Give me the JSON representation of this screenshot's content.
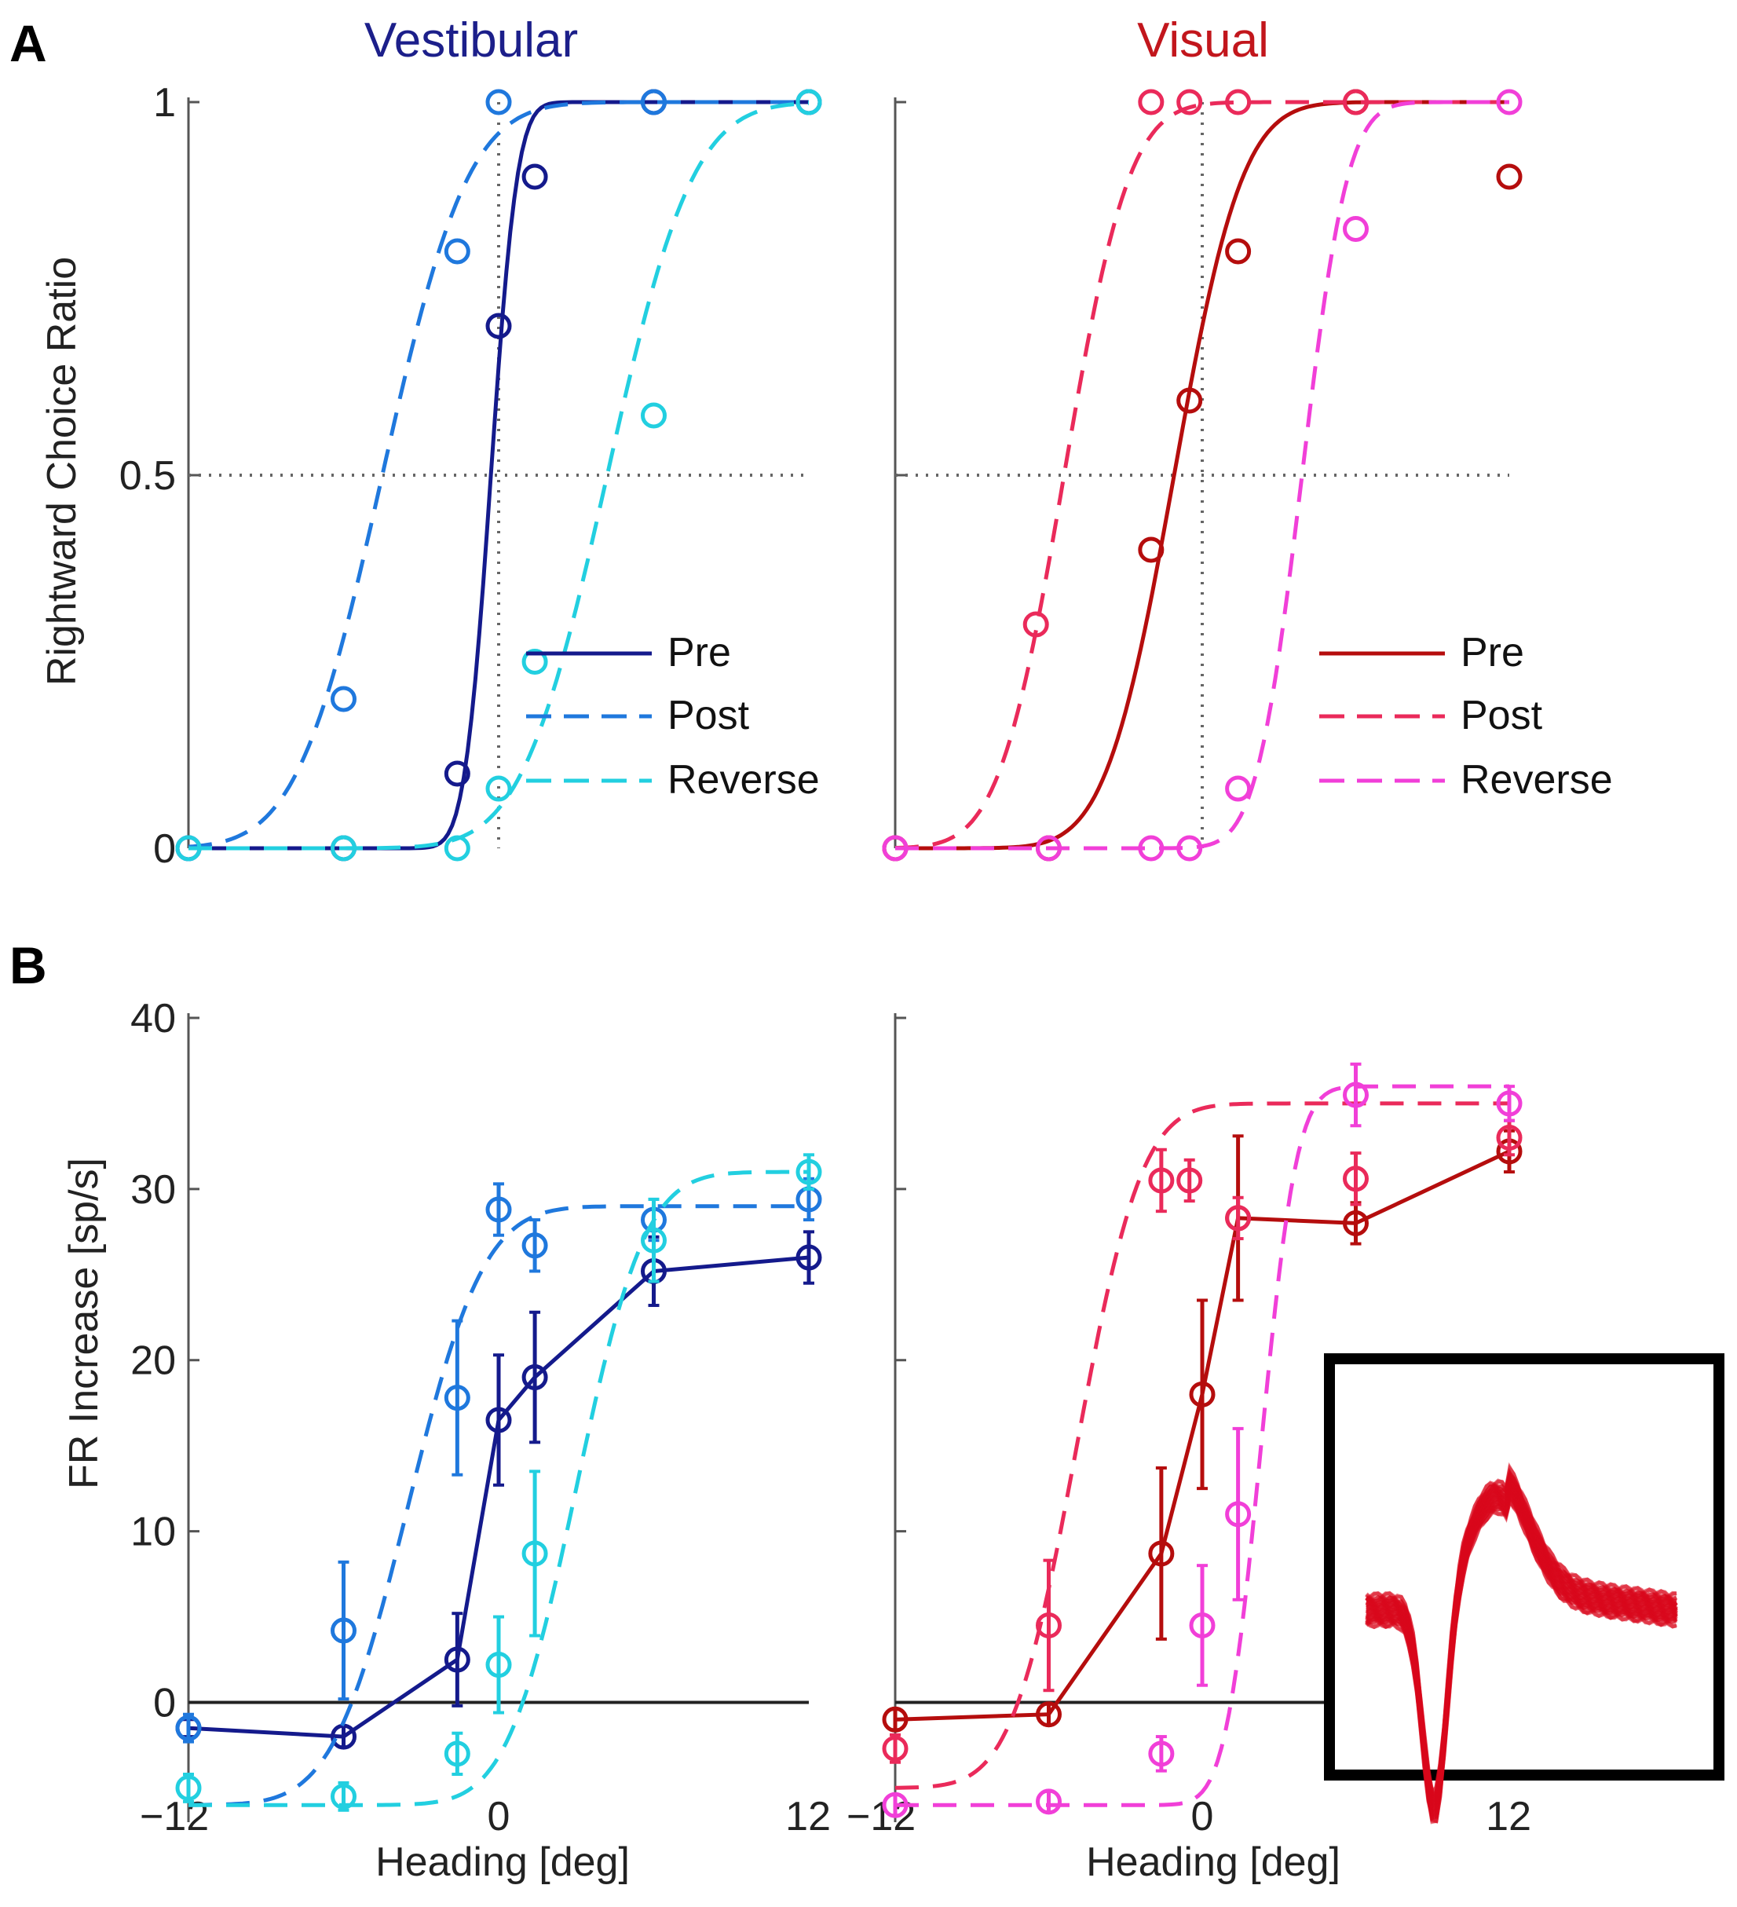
{
  "figure": {
    "panel_a": "A",
    "panel_b": "B"
  },
  "colors": {
    "vestibular_title": "#1c1f8a",
    "visual_title": "#c2161c",
    "vest_pre": "#141a8c",
    "vest_post": "#1f78dd",
    "vest_reverse": "#22cfe0",
    "vis_pre": "#b50d0d",
    "vis_post": "#ea2a5a",
    "vis_reverse": "#f13fd8",
    "inset_trace": "#d9081b",
    "axis": "#555555"
  },
  "chart_data": [
    {
      "id": "A-vestibular",
      "type": "line",
      "title": "Vestibular",
      "xlabel": "",
      "ylabel": "Rightward Choice Ratio",
      "xlim": [
        -12,
        12
      ],
      "ylim": [
        0,
        1
      ],
      "yticks": [
        "0",
        "0.5",
        "1"
      ],
      "xticks": [],
      "reference_lines": [
        "x = 0 (dotted)",
        "y = 0.5 (dotted)"
      ],
      "legend": {
        "placement": "bottom-right",
        "entries": [
          "Pre",
          "Post",
          "Reverse"
        ]
      },
      "series": [
        {
          "name": "Pre",
          "style": "solid",
          "fit": {
            "mu": -0.3,
            "sigma": 0.8
          },
          "points": [
            [
              -12,
              0
            ],
            [
              -6,
              0
            ],
            [
              -1.6,
              0.1
            ],
            [
              0,
              0.7
            ],
            [
              1.4,
              0.9
            ],
            [
              6,
              1
            ],
            [
              12,
              1
            ]
          ]
        },
        {
          "name": "Post",
          "style": "dashed",
          "fit": {
            "mu": -4.5,
            "sigma": 2.6
          },
          "points": [
            [
              -12,
              0
            ],
            [
              -6,
              0.2
            ],
            [
              -1.6,
              0.8
            ],
            [
              0,
              1
            ],
            [
              6,
              1
            ],
            [
              12,
              1
            ]
          ]
        },
        {
          "name": "Reverse",
          "style": "dashed",
          "fit": {
            "mu": 4.2,
            "sigma": 2.6
          },
          "points": [
            [
              -12,
              0
            ],
            [
              -6,
              0
            ],
            [
              -1.6,
              0
            ],
            [
              0,
              0.08
            ],
            [
              1.4,
              0.25
            ],
            [
              6,
              0.58
            ],
            [
              12,
              1
            ]
          ]
        }
      ]
    },
    {
      "id": "A-visual",
      "type": "line",
      "title": "Visual",
      "xlabel": "",
      "ylabel": "",
      "xlim": [
        -12,
        12
      ],
      "ylim": [
        0,
        1
      ],
      "yticks": [],
      "xticks": [],
      "reference_lines": [
        "x = 0 (dotted)",
        "y = 0.5 (dotted)"
      ],
      "legend": {
        "placement": "bottom-right",
        "entries": [
          "Pre",
          "Post",
          "Reverse"
        ]
      },
      "series": [
        {
          "name": "Pre",
          "style": "solid",
          "fit": {
            "mu": -1.1,
            "sigma": 2.1
          },
          "points": [
            [
              -12,
              0
            ],
            [
              -6,
              0
            ],
            [
              -2,
              0.4
            ],
            [
              -0.5,
              0.6
            ],
            [
              1.4,
              0.8
            ],
            [
              6,
              1
            ],
            [
              12,
              0.9
            ]
          ]
        },
        {
          "name": "Post",
          "style": "dashed",
          "fit": {
            "mu": -5.4,
            "sigma": 2.0
          },
          "points": [
            [
              -12,
              0
            ],
            [
              -6.5,
              0.3
            ],
            [
              -2,
              1
            ],
            [
              -0.5,
              1
            ],
            [
              1.4,
              1
            ],
            [
              6,
              1
            ]
          ]
        },
        {
          "name": "Reverse",
          "style": "dashed",
          "fit": {
            "mu": 3.9,
            "sigma": 1.4
          },
          "points": [
            [
              -12,
              0
            ],
            [
              -6,
              0
            ],
            [
              -2,
              0
            ],
            [
              -0.5,
              0
            ],
            [
              1.4,
              0.08
            ],
            [
              6,
              0.83
            ],
            [
              12,
              1
            ]
          ]
        }
      ]
    },
    {
      "id": "B-vestibular",
      "type": "line",
      "title": "",
      "xlabel": "Heading [deg]",
      "ylabel": "FR Increase [sp/s]",
      "xlim": [
        -12,
        12
      ],
      "ylim": [
        -7,
        40
      ],
      "yticks": [
        "0",
        "10",
        "20",
        "30",
        "40"
      ],
      "xticks": [
        "−12",
        "0",
        "12"
      ],
      "reference_lines": [
        "y = 0 (solid)"
      ],
      "series": [
        {
          "name": "Pre",
          "style": "solid",
          "points": [
            [
              -12,
              -1.5,
              0.5
            ],
            [
              -6,
              -2,
              0.6
            ],
            [
              -1.6,
              2.5,
              2.7
            ],
            [
              0,
              16.5,
              3.8
            ],
            [
              1.4,
              19,
              3.8
            ],
            [
              6,
              25.2,
              2
            ],
            [
              12,
              26,
              1.5
            ]
          ]
        },
        {
          "name": "Post",
          "style": "dashed",
          "fit": {
            "mu": -3.5,
            "sigma": 2.3,
            "amp": 35,
            "base": -6
          },
          "points": [
            [
              -12,
              -1.5,
              0.8
            ],
            [
              -6,
              4.2,
              4
            ],
            [
              -1.6,
              17.8,
              4.5
            ],
            [
              0,
              28.8,
              1.5
            ],
            [
              1.4,
              26.7,
              1.5
            ],
            [
              6,
              28.2,
              1.2
            ],
            [
              12,
              29.4,
              1.2
            ]
          ]
        },
        {
          "name": "Reverse",
          "style": "dashed",
          "fit": {
            "mu": 3.0,
            "sigma": 2.1,
            "amp": 37,
            "base": -6
          },
          "points": [
            [
              -12,
              -5,
              0.8
            ],
            [
              -6,
              -5.5,
              0.8
            ],
            [
              -1.6,
              -3,
              1.2
            ],
            [
              0,
              2.2,
              2.8
            ],
            [
              1.4,
              8.7,
              4.8
            ],
            [
              6,
              27,
              2.4
            ],
            [
              12,
              31,
              1
            ]
          ]
        }
      ]
    },
    {
      "id": "B-visual",
      "type": "line",
      "title": "",
      "xlabel": "Heading [deg]",
      "ylabel": "",
      "xlim": [
        -12,
        12
      ],
      "ylim": [
        -7,
        40
      ],
      "yticks": [],
      "xticks": [
        "−12",
        "0",
        "12"
      ],
      "reference_lines": [
        "y = 0 (solid)"
      ],
      "inset": "spike waveform overlay",
      "series": [
        {
          "name": "Pre",
          "style": "solid",
          "points": [
            [
              -12,
              -1,
              0.6
            ],
            [
              -6,
              -0.7,
              0.6
            ],
            [
              -1.6,
              8.7,
              5
            ],
            [
              0,
              18,
              5.5
            ],
            [
              1.4,
              28.3,
              4.8
            ],
            [
              6,
              28,
              1.2
            ],
            [
              12,
              32.2,
              1.2
            ]
          ]
        },
        {
          "name": "Post",
          "style": "dashed",
          "fit": {
            "mu": -4.9,
            "sigma": 2.0,
            "amp": 40,
            "base": -5
          },
          "points": [
            [
              -12,
              -2.7,
              0.8
            ],
            [
              -6,
              4.5,
              3.8
            ],
            [
              -1.6,
              30.5,
              1.8
            ],
            [
              -0.5,
              30.5,
              1.2
            ],
            [
              1.4,
              28.3,
              1.2
            ],
            [
              6,
              30.6,
              1.5
            ],
            [
              12,
              33,
              1
            ]
          ]
        },
        {
          "name": "Reverse",
          "style": "dashed",
          "fit": {
            "mu": 2.3,
            "sigma": 1.1,
            "amp": 42,
            "base": -6
          },
          "points": [
            [
              -12,
              -6,
              0.6
            ],
            [
              -6,
              -5.8,
              0.6
            ],
            [
              -1.6,
              -3,
              1
            ],
            [
              0,
              4.5,
              3.5
            ],
            [
              1.4,
              11,
              5
            ],
            [
              6,
              35.5,
              1.8
            ],
            [
              12,
              35,
              1
            ]
          ]
        }
      ]
    }
  ]
}
